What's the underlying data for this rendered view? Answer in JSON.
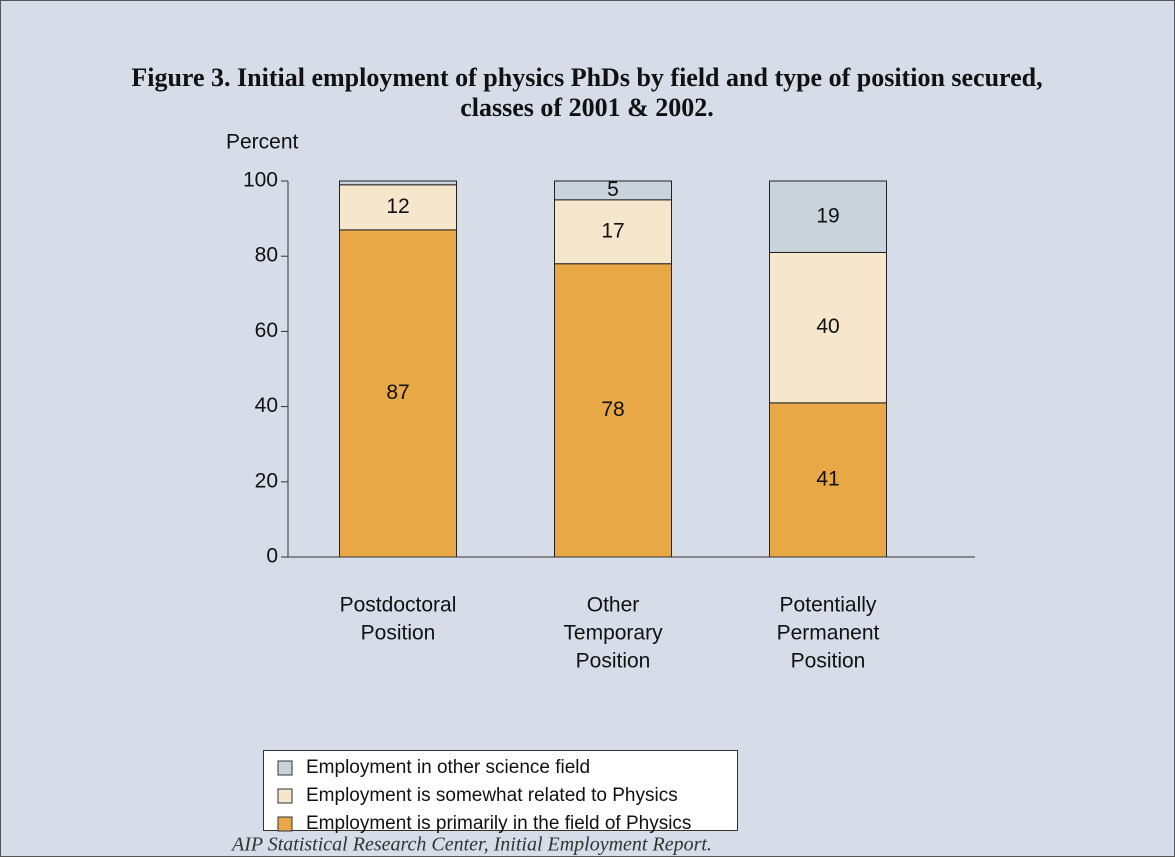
{
  "chart_data": {
    "type": "stacked_bar",
    "title": [
      "Figure 3.  Initial employment of physics PhDs by field and type of position secured,",
      "classes of 2001 & 2002."
    ],
    "ylabel": "Percent",
    "categories": [
      [
        "Postdoctoral",
        "Position"
      ],
      [
        "Other",
        "Temporary",
        "Position"
      ],
      [
        "Potentially",
        "Permanent",
        "Position"
      ]
    ],
    "series": [
      {
        "name": "Employment is primarily in the field of Physics",
        "color": "#e8a846",
        "values": [
          87,
          78,
          41
        ]
      },
      {
        "name": "Employment is somewhat related to Physics",
        "color": "#f5e6cc",
        "values": [
          12,
          17,
          40
        ]
      },
      {
        "name": "Employment in other science field",
        "color": "#c9d3dc",
        "values": [
          1,
          5,
          19
        ]
      }
    ],
    "ylim": [
      0,
      100
    ],
    "yticks": [
      0,
      20,
      40,
      60,
      80,
      100
    ],
    "source": "AIP Statistical Research Center, Initial Employment Report."
  }
}
